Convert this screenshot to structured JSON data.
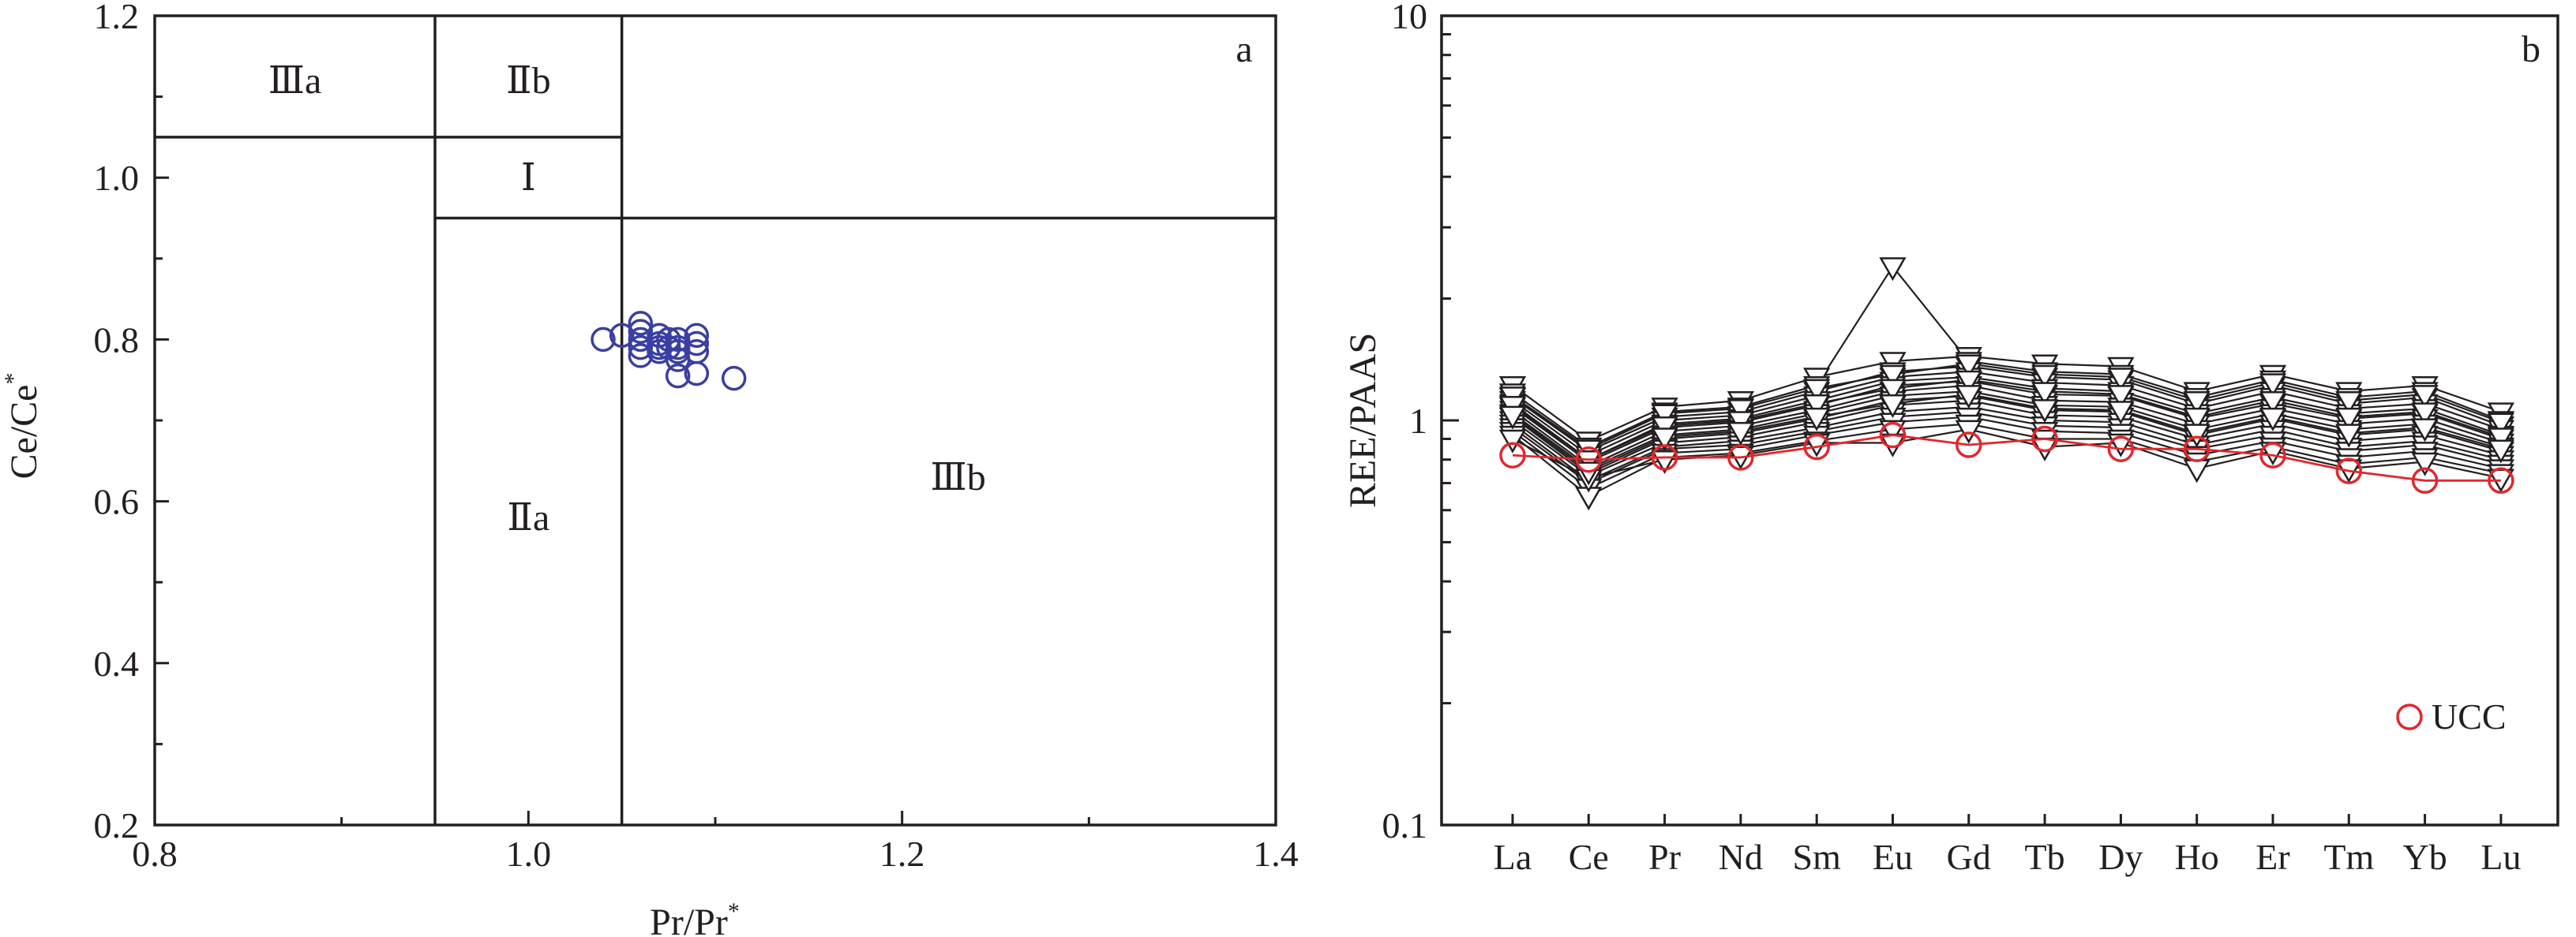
{
  "chart_data": [
    {
      "type": "scatter",
      "panel_label": "a",
      "xlabel": "Pr/Pr*",
      "ylabel": "Ce/Ce*",
      "xlim": [
        0.8,
        1.4
      ],
      "ylim": [
        0.2,
        1.2
      ],
      "xticks": [
        "0.8",
        "1.0",
        "1.2",
        "1.4"
      ],
      "yticks": [
        "0.2",
        "0.4",
        "0.6",
        "0.8",
        "1.0",
        "1.2"
      ],
      "region_lines": [
        {
          "x": [
            0.95,
            0.95
          ],
          "y": [
            0.2,
            1.2
          ]
        },
        {
          "x": [
            1.05,
            1.05
          ],
          "y": [
            0.2,
            1.2
          ]
        },
        {
          "x": [
            0.8,
            1.05
          ],
          "y": [
            1.05,
            1.05
          ]
        },
        {
          "x": [
            0.95,
            1.4
          ],
          "y": [
            0.95,
            0.95
          ]
        }
      ],
      "regions": [
        {
          "label": "Ⅲa",
          "x": 0.875,
          "y": 1.12
        },
        {
          "label": "Ⅱb",
          "x": 1.0,
          "y": 1.12
        },
        {
          "label": "Ⅰ",
          "x": 1.0,
          "y": 1.0
        },
        {
          "label": "Ⅱa",
          "x": 1.0,
          "y": 0.58
        },
        {
          "label": "Ⅲb",
          "x": 1.23,
          "y": 0.63
        }
      ],
      "points": [
        {
          "x": 1.04,
          "y": 0.8
        },
        {
          "x": 1.05,
          "y": 0.805
        },
        {
          "x": 1.06,
          "y": 0.82
        },
        {
          "x": 1.06,
          "y": 0.81
        },
        {
          "x": 1.06,
          "y": 0.8
        },
        {
          "x": 1.06,
          "y": 0.79
        },
        {
          "x": 1.06,
          "y": 0.78
        },
        {
          "x": 1.07,
          "y": 0.805
        },
        {
          "x": 1.07,
          "y": 0.795
        },
        {
          "x": 1.07,
          "y": 0.79
        },
        {
          "x": 1.07,
          "y": 0.785
        },
        {
          "x": 1.075,
          "y": 0.8
        },
        {
          "x": 1.075,
          "y": 0.79
        },
        {
          "x": 1.08,
          "y": 0.8
        },
        {
          "x": 1.08,
          "y": 0.79
        },
        {
          "x": 1.08,
          "y": 0.785
        },
        {
          "x": 1.08,
          "y": 0.775
        },
        {
          "x": 1.08,
          "y": 0.755
        },
        {
          "x": 1.09,
          "y": 0.805
        },
        {
          "x": 1.09,
          "y": 0.795
        },
        {
          "x": 1.09,
          "y": 0.785
        },
        {
          "x": 1.09,
          "y": 0.758
        },
        {
          "x": 1.11,
          "y": 0.752
        }
      ]
    },
    {
      "type": "line",
      "panel_label": "b",
      "ylabel": "REE/PAAS",
      "yscale": "log",
      "ylim": [
        0.1,
        10
      ],
      "yticks": [
        "0.1",
        "1",
        "10"
      ],
      "categories": [
        "La",
        "Ce",
        "Pr",
        "Nd",
        "Sm",
        "Eu",
        "Gd",
        "Tb",
        "Dy",
        "Ho",
        "Er",
        "Tm",
        "Yb",
        "Lu"
      ],
      "legend": {
        "position": "bottom-right",
        "entries": [
          "UCC"
        ]
      },
      "series": [
        {
          "values": [
            1.22,
            0.89,
            1.08,
            1.12,
            1.28,
            1.4,
            1.44,
            1.38,
            1.36,
            1.18,
            1.3,
            1.18,
            1.22,
            1.05
          ]
        },
        {
          "values": [
            1.17,
            0.86,
            1.05,
            1.08,
            1.22,
            2.4,
            1.4,
            1.32,
            1.3,
            1.14,
            1.26,
            1.14,
            1.18,
            1.0
          ]
        },
        {
          "values": [
            1.14,
            0.84,
            1.02,
            1.05,
            1.18,
            1.32,
            1.36,
            1.28,
            1.26,
            1.1,
            1.22,
            1.1,
            1.14,
            0.97
          ]
        },
        {
          "values": [
            1.12,
            0.82,
            1.0,
            1.03,
            1.15,
            1.28,
            1.32,
            1.24,
            1.22,
            1.07,
            1.18,
            1.07,
            1.1,
            0.95
          ]
        },
        {
          "values": [
            1.1,
            0.8,
            0.98,
            1.01,
            1.12,
            1.25,
            1.28,
            1.2,
            1.18,
            1.04,
            1.14,
            1.04,
            1.07,
            0.92
          ]
        },
        {
          "values": [
            1.08,
            0.79,
            0.96,
            0.99,
            1.09,
            1.22,
            1.25,
            1.16,
            1.15,
            1.01,
            1.1,
            1.01,
            1.04,
            0.9
          ]
        },
        {
          "values": [
            1.06,
            0.77,
            0.94,
            0.97,
            1.06,
            1.18,
            1.22,
            1.12,
            1.11,
            0.98,
            1.07,
            0.98,
            1.01,
            0.88
          ]
        },
        {
          "values": [
            1.04,
            0.76,
            0.92,
            0.95,
            1.04,
            1.15,
            1.18,
            1.09,
            1.08,
            0.95,
            1.04,
            0.95,
            0.98,
            0.86
          ]
        },
        {
          "values": [
            1.02,
            0.74,
            0.9,
            0.93,
            1.01,
            1.12,
            1.15,
            1.06,
            1.05,
            0.92,
            1.01,
            0.92,
            0.95,
            0.84
          ]
        },
        {
          "values": [
            1.0,
            0.73,
            0.88,
            0.91,
            0.99,
            1.09,
            1.12,
            1.03,
            1.02,
            0.9,
            0.98,
            0.89,
            0.92,
            0.82
          ]
        },
        {
          "values": [
            0.98,
            0.71,
            0.86,
            0.89,
            0.96,
            1.05,
            1.08,
            1.0,
            0.99,
            0.87,
            0.95,
            0.86,
            0.89,
            0.8
          ]
        },
        {
          "values": [
            0.96,
            0.7,
            0.85,
            0.87,
            0.94,
            1.02,
            1.05,
            0.97,
            0.96,
            0.85,
            0.92,
            0.84,
            0.87,
            0.78
          ]
        },
        {
          "values": [
            0.94,
            0.68,
            0.83,
            0.85,
            0.92,
            0.99,
            1.02,
            0.94,
            0.93,
            0.82,
            0.89,
            0.81,
            0.84,
            0.76
          ]
        },
        {
          "values": [
            0.92,
            0.65,
            0.81,
            0.83,
            0.89,
            0.95,
            0.98,
            0.9,
            0.9,
            0.79,
            0.86,
            0.78,
            0.81,
            0.74
          ]
        },
        {
          "values": [
            0.9,
            0.72,
            0.8,
            0.82,
            0.88,
            0.88,
            0.95,
            0.86,
            0.88,
            0.76,
            0.84,
            0.76,
            0.79,
            0.72
          ]
        },
        {
          "values": [
            1.15,
            0.85,
            1.04,
            1.07,
            1.2,
            1.3,
            1.38,
            1.3,
            1.28,
            1.12,
            1.24,
            1.12,
            1.16,
            0.99
          ]
        },
        {
          "values": [
            1.09,
            0.8,
            0.97,
            1.0,
            1.1,
            1.2,
            1.26,
            1.18,
            1.16,
            1.02,
            1.12,
            1.02,
            1.05,
            0.91
          ]
        },
        {
          "values": [
            1.03,
            0.75,
            0.91,
            0.94,
            1.02,
            1.1,
            1.16,
            1.07,
            1.06,
            0.93,
            1.02,
            0.93,
            0.96,
            0.85
          ]
        }
      ],
      "ucc": {
        "name": "UCC",
        "color": "#e0282d",
        "values": [
          0.82,
          0.8,
          0.81,
          0.81,
          0.86,
          0.92,
          0.87,
          0.9,
          0.85,
          0.85,
          0.82,
          0.75,
          0.71,
          0.71
        ]
      }
    }
  ]
}
